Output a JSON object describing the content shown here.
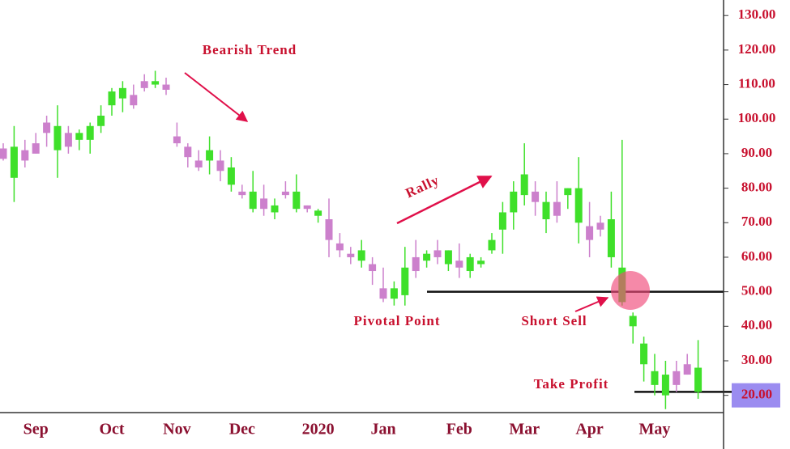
{
  "chart_data": {
    "type": "candlestick",
    "categories": [
      null,
      null,
      null,
      "Sep",
      null,
      null,
      null,
      null,
      null,
      null,
      "Oct",
      null,
      null,
      null,
      null,
      null,
      "Nov",
      null,
      null,
      null,
      null,
      null,
      "Dec",
      null,
      null,
      null,
      null,
      null,
      null,
      "2020",
      null,
      null,
      null,
      null,
      null,
      "Jan",
      null,
      null,
      null,
      null,
      null,
      null,
      "Feb",
      null,
      null,
      null,
      null,
      null,
      "Mar",
      null,
      null,
      null,
      null,
      null,
      "Apr",
      null,
      null,
      null,
      null,
      null,
      "May",
      null,
      null,
      null,
      null
    ],
    "open": [
      91.5,
      83,
      91,
      93,
      99,
      91,
      96,
      94,
      94,
      98,
      104,
      106,
      107,
      111,
      110,
      110,
      95,
      92,
      88,
      88,
      88,
      81,
      79,
      74,
      77,
      73,
      79,
      74,
      75,
      72,
      71,
      64,
      61,
      59,
      58,
      51,
      48,
      49,
      60,
      59,
      62,
      58,
      59,
      56,
      58,
      62,
      68,
      73,
      78,
      79,
      71,
      76,
      78,
      70,
      69,
      70,
      60,
      47,
      40,
      29,
      23,
      20,
      27,
      29,
      21
    ],
    "high": [
      93,
      98,
      94,
      96,
      101,
      104,
      98,
      97,
      99,
      104,
      109,
      111,
      110,
      113,
      114,
      112,
      99,
      93,
      91,
      95,
      91,
      89,
      81,
      85,
      81,
      77,
      82,
      84,
      75,
      74,
      77,
      67,
      63,
      65,
      60,
      57,
      53,
      63,
      65,
      62,
      65,
      62,
      64,
      61,
      60,
      67,
      76,
      82,
      93,
      82,
      79,
      82,
      80,
      89,
      76,
      72,
      79,
      94,
      44,
      37,
      32,
      30,
      30,
      32,
      36
    ],
    "low": [
      88,
      76,
      86,
      90,
      92,
      83,
      90,
      91,
      90,
      96,
      101,
      102,
      103,
      108,
      109,
      107,
      92,
      86,
      85,
      84,
      82,
      79,
      77,
      73,
      72,
      71,
      77,
      73,
      73,
      70,
      60,
      60,
      58,
      57,
      52,
      47,
      46,
      46,
      54,
      57,
      58,
      56,
      54,
      54,
      57,
      61,
      61,
      68,
      75,
      72,
      67,
      70,
      74,
      64,
      60,
      66,
      57,
      46,
      35,
      24,
      20,
      16,
      21,
      26,
      19
    ],
    "close": [
      88.5,
      92,
      88,
      90,
      96,
      98,
      92,
      96,
      98,
      101,
      108,
      109,
      104,
      109,
      111,
      108.5,
      93,
      89,
      86,
      91,
      85,
      86,
      78,
      79,
      74,
      75,
      78,
      79,
      74,
      73.5,
      65,
      62,
      60,
      62,
      56,
      48,
      51,
      57,
      56,
      61,
      60,
      62,
      57,
      60,
      59,
      65,
      73,
      79,
      84,
      76,
      76,
      72,
      80,
      80,
      65,
      68,
      71,
      57,
      43,
      35,
      27,
      26,
      23,
      26,
      28
    ],
    "up_color": "#3fe02a",
    "down_color": "#cc80cc",
    "ylim": [
      15,
      134.5
    ],
    "yticks": [
      {
        "value": 20,
        "label": "20.00"
      },
      {
        "value": 30,
        "label": "30.00"
      },
      {
        "value": 40,
        "label": "40.00"
      },
      {
        "value": 50,
        "label": "50.00"
      },
      {
        "value": 60,
        "label": "60.00"
      },
      {
        "value": 70,
        "label": "70.00"
      },
      {
        "value": 80,
        "label": "80.00"
      },
      {
        "value": 90,
        "label": "90.00"
      },
      {
        "value": 100,
        "label": "100.00"
      },
      {
        "value": 110,
        "label": "110.00"
      },
      {
        "value": 120,
        "label": "120.00"
      },
      {
        "value": 130,
        "label": "130.00"
      }
    ],
    "highlighted_ytick": 20,
    "reference_lines": [
      50,
      21
    ],
    "annotations": [
      "Bearish Trend",
      "Rally",
      "Pivotal Point",
      "Short Sell",
      "Take Profit"
    ]
  }
}
